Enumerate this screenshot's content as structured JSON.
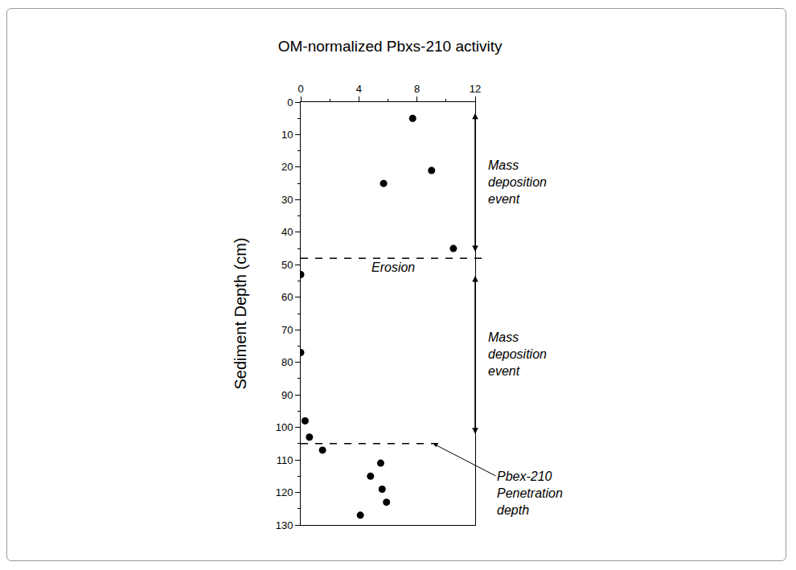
{
  "chart_data": {
    "type": "scatter",
    "title": "OM-normalized Pbxs-210 activity",
    "y_label": "Sediment Depth (cm)",
    "x": [
      7.7,
      9.0,
      5.7,
      10.5,
      0.0,
      0.0,
      0.3,
      0.6,
      1.5,
      5.5,
      4.8,
      5.6,
      5.9,
      4.1
    ],
    "values": [
      5,
      21,
      25,
      45,
      53,
      77,
      98,
      103,
      107,
      111,
      115,
      119,
      123,
      127
    ],
    "color": "#000000",
    "marker": "circle",
    "grid": false,
    "xlim": [
      0,
      12
    ],
    "xticks": [
      0,
      4,
      8,
      12
    ],
    "ylim": [
      0,
      130
    ],
    "yticks": [
      0,
      10,
      20,
      30,
      40,
      50,
      60,
      70,
      80,
      90,
      100,
      110,
      120,
      130
    ],
    "events": [
      {
        "label": "Mass\ndeposition\nevent",
        "from": 3,
        "to": 46
      },
      {
        "label": "Mass\ndeposition\nevent",
        "from": 53,
        "to": 102
      }
    ],
    "reference_lines": [
      {
        "y": 48,
        "label": "Erosion",
        "line_style": "dashed"
      },
      {
        "y": 105,
        "label": "Pbex-210\nPenetration\ndepth",
        "line_style": "dashed"
      }
    ]
  }
}
